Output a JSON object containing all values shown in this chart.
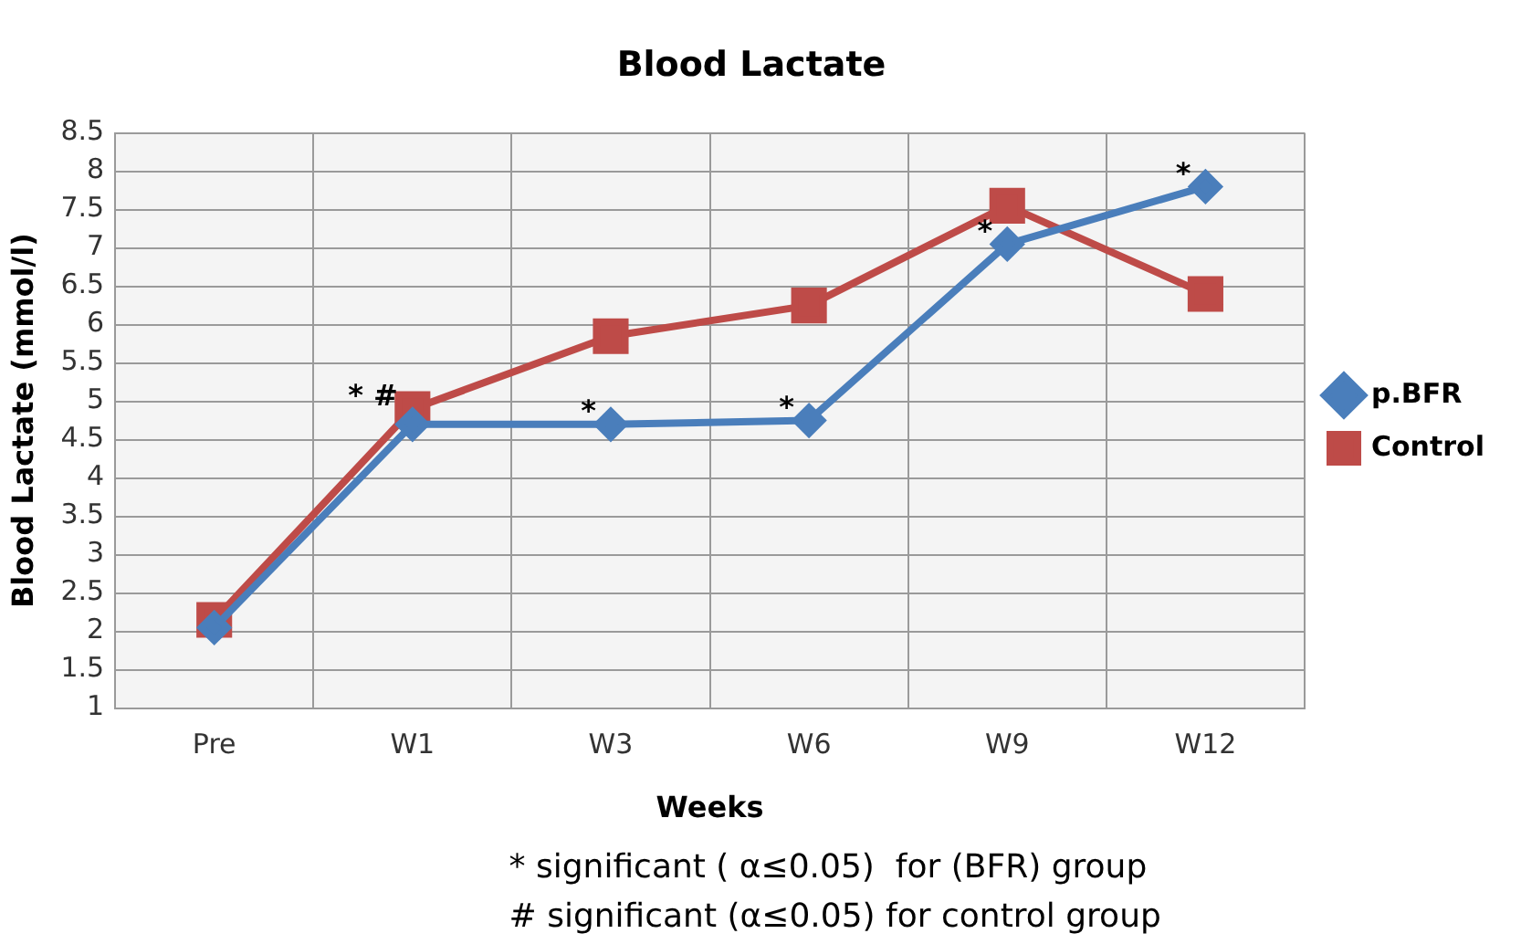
{
  "chart_data": {
    "type": "line",
    "title": "Blood Lactate",
    "xlabel": "Weeks",
    "ylabel": "Blood Lactate (mmol/l)",
    "categories": [
      "Pre",
      "W1",
      "W3",
      "W6",
      "W9",
      "W12"
    ],
    "series": [
      {
        "name": "p.BFR",
        "color": "#4a7ebb",
        "marker": "diamond",
        "values": [
          2.05,
          4.7,
          4.7,
          4.75,
          7.05,
          7.8
        ]
      },
      {
        "name": "Control",
        "color": "#be4b48",
        "marker": "square",
        "values": [
          2.15,
          4.9,
          5.85,
          6.25,
          7.55,
          6.4
        ]
      }
    ],
    "ylim": [
      1,
      8.5
    ],
    "yticks": [
      1,
      1.5,
      2,
      2.5,
      3,
      3.5,
      4,
      4.5,
      5,
      5.5,
      6,
      6.5,
      7,
      7.5,
      8,
      8.5
    ],
    "grid": true,
    "legend": "right",
    "line_style": "solid",
    "annotations": [
      {
        "text": "* #",
        "x": "W1",
        "y": 4.9
      },
      {
        "text": "*",
        "x": "W3",
        "y": 4.7
      },
      {
        "text": "*",
        "x": "W6",
        "y": 4.75
      },
      {
        "text": "*",
        "x": "W9",
        "y": 7.05
      },
      {
        "text": "*",
        "x": "W12",
        "y": 7.8
      },
      "* significant ( α≤0.05)  for (BFR) group",
      "# significant (α≤0.05) for control group"
    ]
  }
}
